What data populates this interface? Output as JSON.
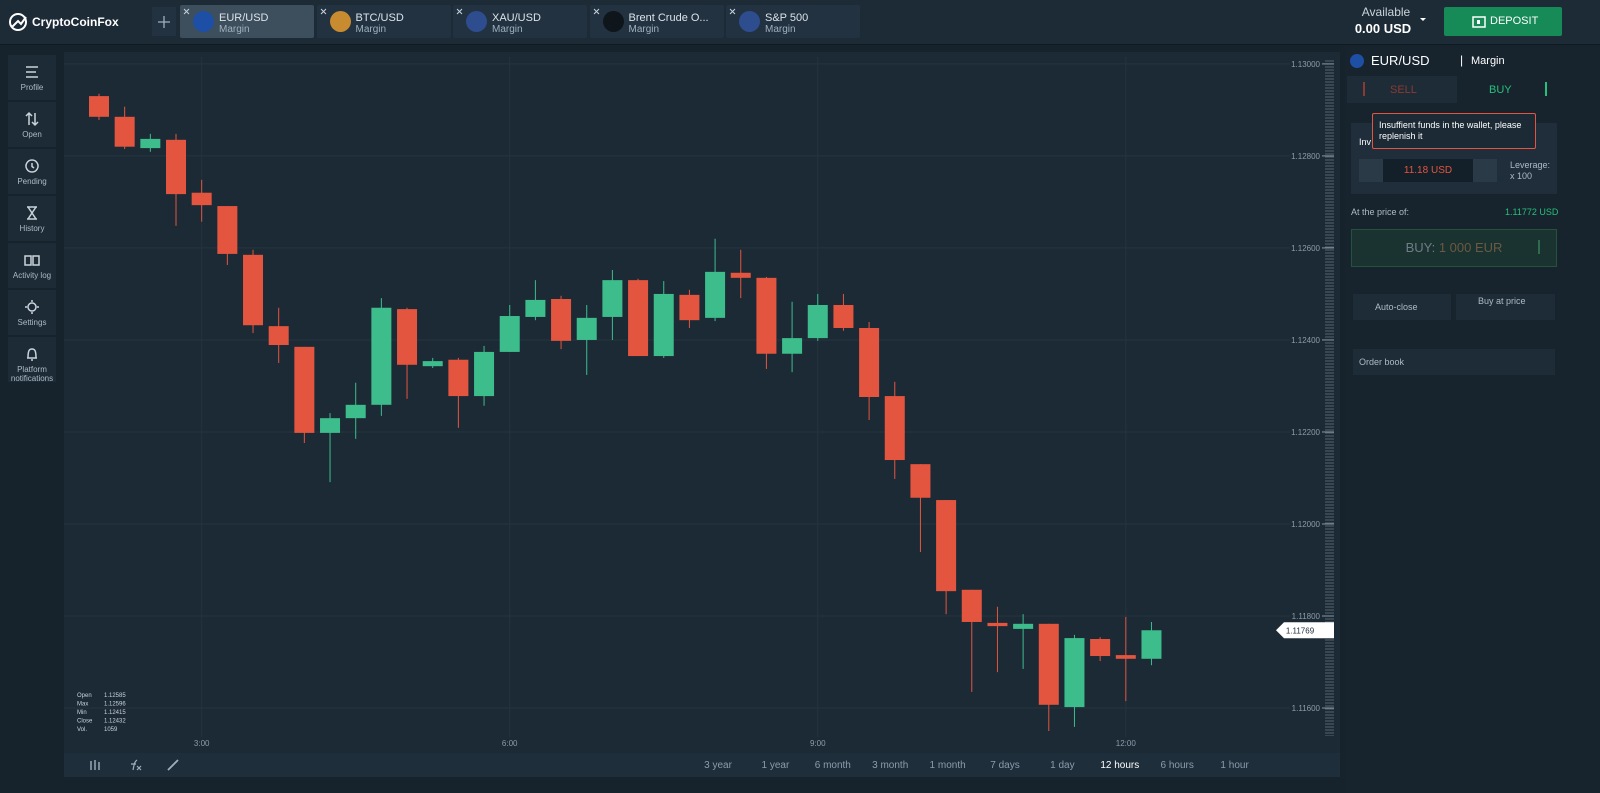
{
  "header": {
    "logo": "CryptoCoinFox",
    "tabs": [
      {
        "name": "EUR/USD",
        "sub": "Margin"
      },
      {
        "name": "BTC/USD",
        "sub": "Margin"
      },
      {
        "name": "XAU/USD",
        "sub": "Margin"
      },
      {
        "name": "Brent Crude O...",
        "sub": "Margin"
      },
      {
        "name": "S&P 500",
        "sub": "Margin"
      }
    ],
    "available_label": "Available",
    "available_value": "0.00 USD",
    "deposit": "DEPOSIT"
  },
  "sidebar": [
    "Profile",
    "Open",
    "Pending",
    "History",
    "Activity log",
    "Settings",
    "Platform notifications"
  ],
  "chart_data": {
    "type": "candlestick",
    "categories": [
      null,
      null,
      null,
      null,
      "3:00",
      null,
      null,
      null,
      null,
      null,
      null,
      null,
      null,
      null,
      null,
      null,
      "6:00",
      null,
      null,
      null,
      null,
      null,
      null,
      null,
      null,
      null,
      null,
      null,
      "9:00",
      null,
      null,
      null,
      null,
      null,
      null,
      null,
      null,
      null,
      null,
      null,
      "12:00",
      null
    ],
    "open": [
      1.1293,
      1.12885,
      1.12817,
      1.12835,
      1.1272,
      1.12691,
      1.12585,
      1.1243,
      1.12385,
      1.12198,
      1.1223,
      1.12259,
      1.12467,
      1.12343,
      1.12357,
      1.12278,
      1.12374,
      1.1245,
      1.12489,
      1.124,
      1.1245,
      1.1253,
      1.12365,
      1.12498,
      1.12448,
      1.12546,
      1.12535,
      1.1237,
      1.12404,
      1.12476,
      1.12426,
      1.12278,
      1.1213,
      1.12052,
      1.11857,
      1.11785,
      1.11772,
      1.11783,
      1.11602,
      1.1175,
      1.11715,
      1.11707
    ],
    "high": [
      1.12935,
      1.12907,
      1.12848,
      1.12848,
      1.12748,
      1.12691,
      1.12596,
      1.1247,
      1.12385,
      1.12241,
      1.12307,
      1.12491,
      1.1247,
      1.12361,
      1.12361,
      1.12387,
      1.12476,
      1.1253,
      1.12496,
      1.12476,
      1.12552,
      1.12533,
      1.12528,
      1.12509,
      1.1262,
      1.12596,
      1.12537,
      1.12483,
      1.125,
      1.125,
      1.12439,
      1.12309,
      1.1213,
      1.12052,
      1.11857,
      1.1182,
      1.11804,
      1.11783,
      1.11759,
      1.11754,
      1.11798,
      1.11787
    ],
    "low": [
      1.12878,
      1.12815,
      1.12809,
      1.12648,
      1.12657,
      1.12563,
      1.12415,
      1.1235,
      1.12176,
      1.12091,
      1.12185,
      1.12235,
      1.12272,
      1.12339,
      1.12209,
      1.12257,
      1.12374,
      1.12443,
      1.1238,
      1.12324,
      1.124,
      1.12365,
      1.12361,
      1.12426,
      1.12441,
      1.12491,
      1.12337,
      1.1233,
      1.12398,
      1.1242,
      1.12226,
      1.12098,
      1.11939,
      1.11804,
      1.11635,
      1.11678,
      1.11685,
      1.1155,
      1.11559,
      1.11702,
      1.11615,
      1.11693
    ],
    "close": [
      1.12885,
      1.1282,
      1.12837,
      1.12717,
      1.12693,
      1.12587,
      1.12432,
      1.12389,
      1.12198,
      1.1223,
      1.12259,
      1.1247,
      1.12346,
      1.12354,
      1.12278,
      1.12374,
      1.12452,
      1.12487,
      1.12398,
      1.12448,
      1.1253,
      1.12365,
      1.125,
      1.12443,
      1.12548,
      1.12535,
      1.1237,
      1.12404,
      1.12476,
      1.12426,
      1.12276,
      1.12139,
      1.12057,
      1.11854,
      1.11787,
      1.11778,
      1.11783,
      1.11607,
      1.11752,
      1.11713,
      1.11707,
      1.11769
    ],
    "ylim": [
      1.11537,
      1.13015
    ],
    "yticks": [
      {
        "value": 1.13,
        "label": "1.13000"
      },
      {
        "value": 1.128,
        "label": "1.12800"
      },
      {
        "value": 1.126,
        "label": "1.12600"
      },
      {
        "value": 1.124,
        "label": "1.12400"
      },
      {
        "value": 1.122,
        "label": "1.12200"
      },
      {
        "value": 1.12,
        "label": "1.12000"
      },
      {
        "value": 1.118,
        "label": "1.11800"
      },
      {
        "value": 1.116,
        "label": "1.11600"
      }
    ],
    "grid": true,
    "colors": {
      "up": "#3dbd8c",
      "down": "#e4553f"
    },
    "current_price": {
      "value": 1.11769,
      "label": "1.11769"
    }
  },
  "ohlc_info": {
    "rows": [
      [
        "Open",
        "1.12585"
      ],
      [
        "Max",
        "1.12596"
      ],
      [
        "Min",
        "1.12415"
      ],
      [
        "Close",
        "1.12432"
      ],
      [
        "Vol.",
        "1059"
      ]
    ]
  },
  "timeframes": [
    "3 year",
    "1 year",
    "6 month",
    "3 month",
    "1 month",
    "7 days",
    "1 day",
    "12 hours",
    "6 hours",
    "1 hour"
  ],
  "panel": {
    "asset": "EUR/USD",
    "separator": "|",
    "mode": "Margin",
    "sell": "SELL",
    "buy": "BUY",
    "tooltip": "Insuffient funds in the wallet, please replenish it",
    "investment": "Inv",
    "minus": "-",
    "amount": "11.18",
    "currency": "USD",
    "plus": "+",
    "leverage_label": "Leverage:",
    "leverage_value": "x 100",
    "price_label": "At the price of:",
    "price_value": "1.11772 USD",
    "buy_button_label": "BUY:",
    "buy_button_amount": "1 000 EUR",
    "auto_close": "Auto-close",
    "buy_at_price": "Buy at price",
    "order_book": "Order book"
  }
}
